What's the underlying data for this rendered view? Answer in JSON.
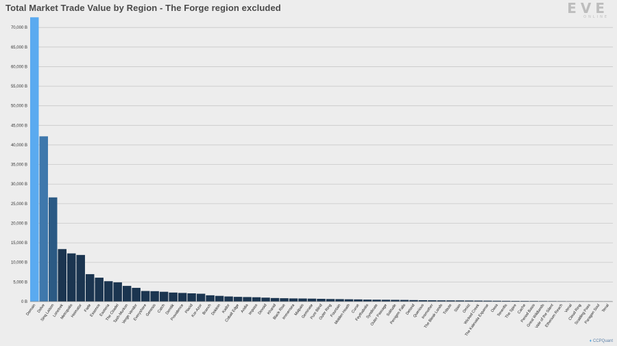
{
  "title": "Total Market Trade Value by Region - The Forge region excluded",
  "logo": {
    "main": "EVE",
    "sub": "ONLINE"
  },
  "credit": {
    "icon": "twitter-bird-icon",
    "text": "CCPQuant"
  },
  "colors": {
    "top1": "#5aaaf0",
    "top2": "#3f78ac",
    "top3": "#2b5a84",
    "rest": "#1b3550",
    "grid": "#c8c8c8",
    "axis": "#888888",
    "background": "#ededed"
  },
  "chart_data": {
    "type": "bar",
    "title": "Total Market Trade Value by Region - The Forge region excluded",
    "xlabel": "",
    "ylabel": "",
    "ylim": [
      0,
      73000
    ],
    "yticks": [
      0,
      5000,
      10000,
      15000,
      20000,
      25000,
      30000,
      35000,
      40000,
      45000,
      50000,
      55000,
      60000,
      65000,
      70000
    ],
    "ytick_labels": [
      "0 B",
      "5,000 B",
      "10,000 B",
      "15,000 B",
      "20,000 B",
      "25,000 B",
      "30,000 B",
      "35,000 B",
      "40,000 B",
      "45,000 B",
      "50,000 B",
      "55,000 B",
      "60,000 B",
      "65,000 B",
      "70,000 B"
    ],
    "grid": true,
    "categories": [
      "Domain",
      "Delve",
      "Sinq Laison",
      "Lonetrek",
      "Metropolis",
      "Heimatar",
      "Fade",
      "Essence",
      "Esoteria",
      "The Citadel",
      "Tash-Murkon",
      "Verge Vendor",
      "Everyshore",
      "Genesis",
      "Catch",
      "Derelik",
      "Providence",
      "Placid",
      "Kor-Azor",
      "Branch",
      "Deklein",
      "Kador",
      "Cobalt Edge",
      "Aridia",
      "Impass",
      "Devoid",
      "Khanid",
      "Black Rise",
      "Immensea",
      "Malpais",
      "Geminate",
      "Pure Blind",
      "Outer Ring",
      "Fountain",
      "Molden Heath",
      "Curse",
      "Feythabolis",
      "Syndicate",
      "Outer Passage",
      "Solitude",
      "Perrigen Falls",
      "Detorid",
      "Querious",
      "Insmother",
      "The Bleak Lands",
      "Tribute",
      "Stain",
      "Omist",
      "Wicked Creek",
      "The Kalevala Expanse",
      "Oasa",
      "Tenerifis",
      "The Spire",
      "Cache",
      "Period Basis",
      "Great Wildlands",
      "Vale of the Silent",
      "Etherium Reach",
      "Venal",
      "Cloud Ring",
      "Scalding Pass",
      "Paragon Soul",
      "Tenal"
    ],
    "values": [
      72600,
      42200,
      26600,
      13400,
      12300,
      11900,
      7000,
      6100,
      5200,
      4900,
      4000,
      3500,
      2700,
      2650,
      2500,
      2300,
      2200,
      2100,
      2000,
      1600,
      1450,
      1300,
      1200,
      1150,
      1100,
      1000,
      900,
      850,
      800,
      780,
      750,
      700,
      650,
      620,
      580,
      550,
      500,
      480,
      460,
      440,
      420,
      380,
      350,
      330,
      310,
      300,
      290,
      270,
      250,
      230,
      210,
      190,
      170,
      160,
      150,
      130,
      120,
      110,
      100,
      90,
      80,
      70,
      60
    ]
  }
}
